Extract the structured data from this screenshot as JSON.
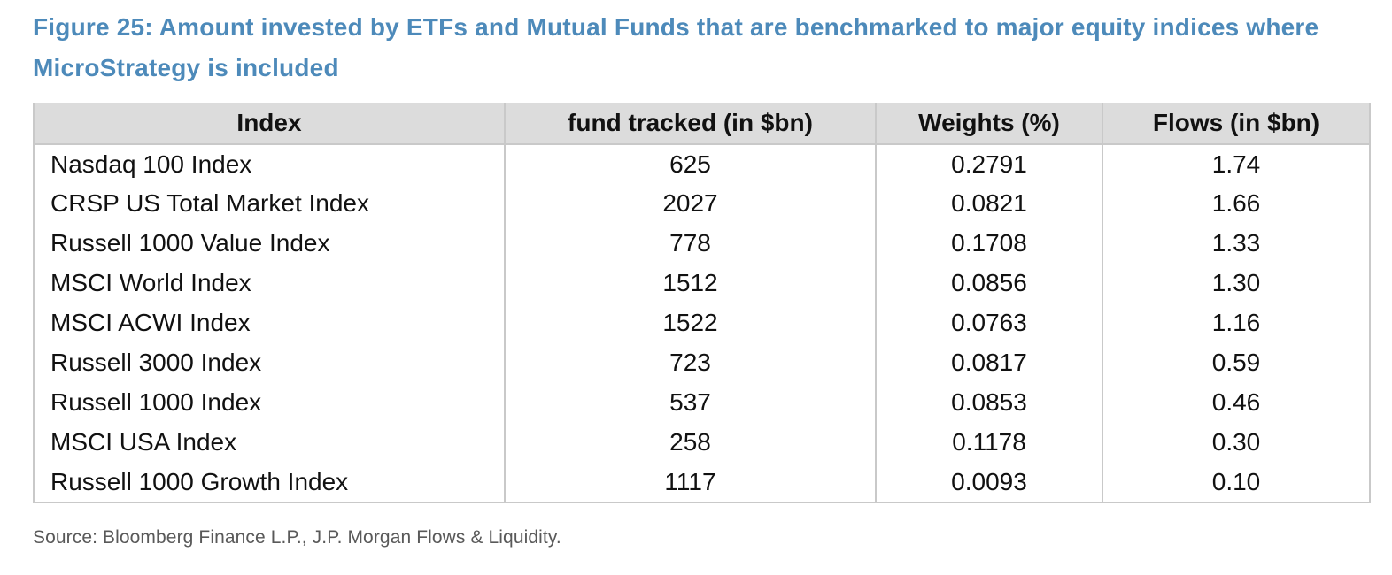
{
  "figure": {
    "title": "Figure 25: Amount invested by ETFs and Mutual Funds that are benchmarked to major equity indices where MicroStrategy is included",
    "source": "Source: Bloomberg Finance L.P., J.P. Morgan Flows & Liquidity."
  },
  "colors": {
    "title_blue": "#4d8aba",
    "header_bg": "#dcdcdc",
    "table_border": "#c9c9c9",
    "source_gray": "#595959"
  },
  "chart_data": {
    "type": "table",
    "columns": [
      "Index",
      "fund tracked (in $bn)",
      "Weights (%)",
      "Flows (in $bn)"
    ],
    "rows": [
      [
        "Nasdaq 100 Index",
        "625",
        "0.2791",
        "1.74"
      ],
      [
        "CRSP US Total Market Index",
        "2027",
        "0.0821",
        "1.66"
      ],
      [
        "Russell 1000 Value Index",
        "778",
        "0.1708",
        "1.33"
      ],
      [
        "MSCI World Index",
        "1512",
        "0.0856",
        "1.30"
      ],
      [
        "MSCI ACWI Index",
        "1522",
        "0.0763",
        "1.16"
      ],
      [
        "Russell 3000 Index",
        "723",
        "0.0817",
        "0.59"
      ],
      [
        "Russell 1000 Index",
        "537",
        "0.0853",
        "0.46"
      ],
      [
        "MSCI USA Index",
        "258",
        "0.1178",
        "0.30"
      ],
      [
        "Russell 1000 Growth Index",
        "1117",
        "0.0093",
        "0.10"
      ]
    ]
  }
}
